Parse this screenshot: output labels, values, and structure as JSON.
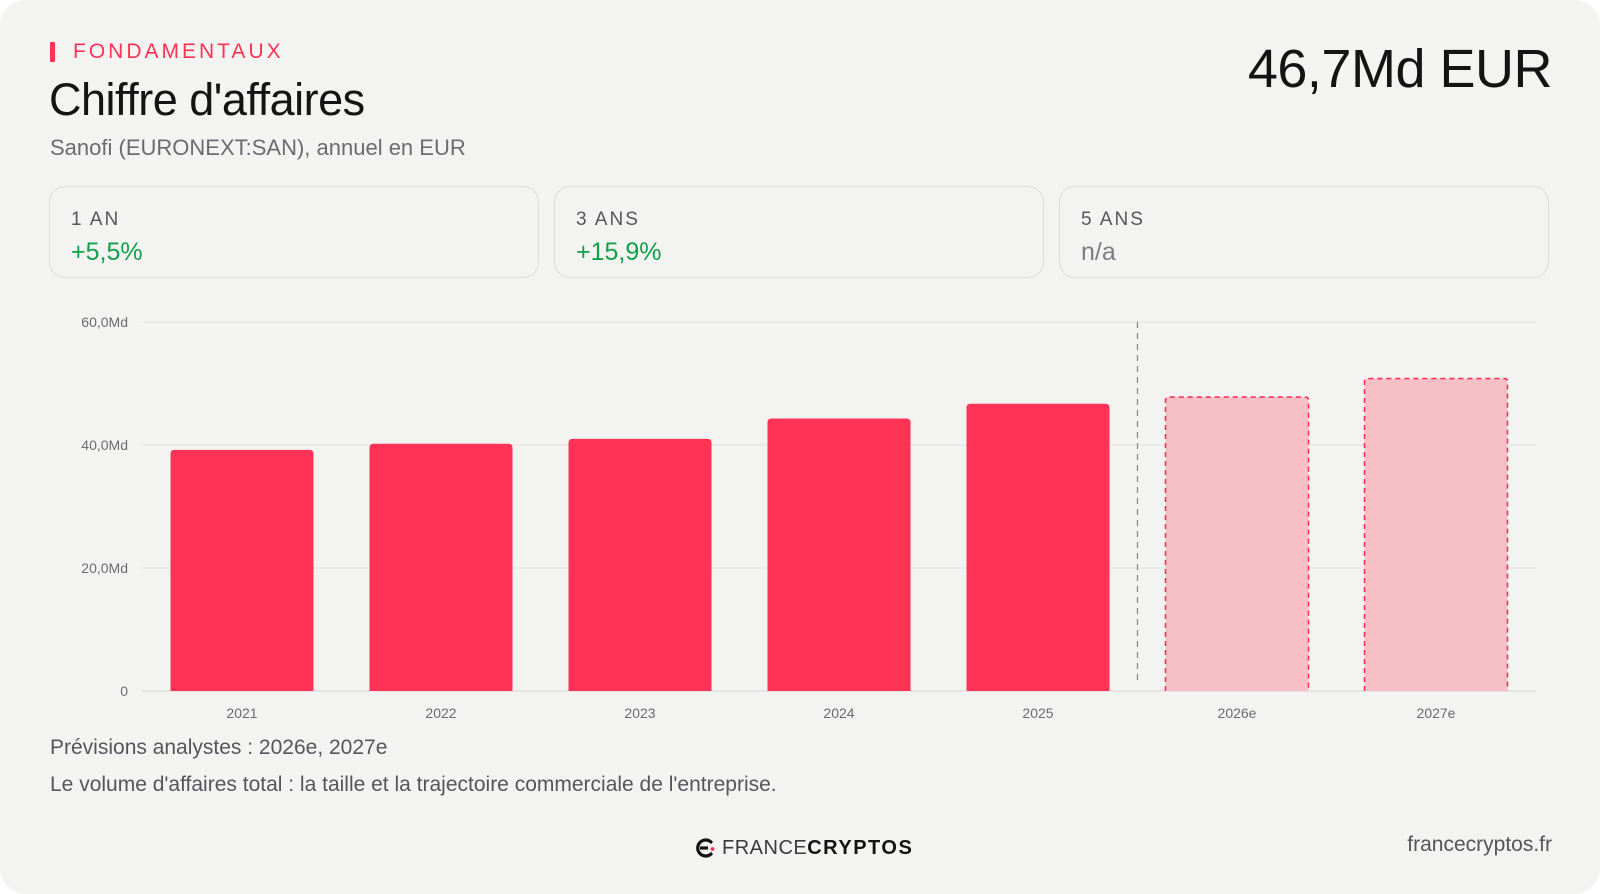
{
  "header": {
    "eyebrow": "FONDAMENTAUX",
    "title": "Chiffre d'affaires",
    "subtitle": "Sanofi (EURONEXT:SAN), annuel en EUR",
    "headline_value": "46,7Md EUR"
  },
  "stats": [
    {
      "label": "1 AN",
      "value": "+5,5%",
      "tone": "positive"
    },
    {
      "label": "3 ANS",
      "value": "+15,9%",
      "tone": "positive"
    },
    {
      "label": "5 ANS",
      "value": "n/a",
      "tone": "neutral"
    }
  ],
  "colors": {
    "accent": "#ff3355",
    "actual_bar": "#ff3355",
    "forecast_bar": "#f7bfc6",
    "positive": "#12a04a"
  },
  "chart_data": {
    "type": "bar",
    "categories": [
      "2021",
      "2022",
      "2023",
      "2024",
      "2025",
      "2026e",
      "2027e"
    ],
    "values": [
      39.2,
      40.2,
      41.0,
      44.3,
      46.7,
      47.8,
      50.8
    ],
    "forecast": [
      false,
      false,
      false,
      false,
      false,
      true,
      true
    ],
    "ylim": [
      0,
      60
    ],
    "yticks": [
      0,
      20,
      40,
      60
    ],
    "ytick_labels": [
      "0",
      "20,0Md",
      "40,0Md",
      "60,0Md"
    ],
    "grid": true,
    "xlabel": "",
    "ylabel": ""
  },
  "footer": {
    "note_forecast": "Prévisions analystes : 2026e, 2027e",
    "note_description": "Le volume d'affaires total : la taille et la trajectoire commerciale de l'entreprise.",
    "logo_word1": "FRANCE",
    "logo_word2": "CRYPTOS",
    "site": "francecryptos.fr"
  }
}
